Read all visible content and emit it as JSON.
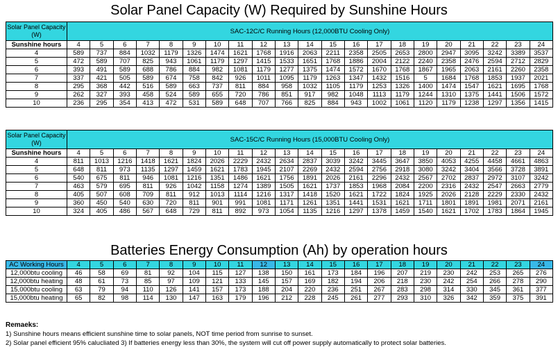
{
  "titles": {
    "solar": "Solar Panel Capacity (W) Required by Sunshine Hours",
    "batteries": "Batteries Energy Consumption (Ah) by operation hours"
  },
  "table1": {
    "corner": "Solar Panel Capacity (W)",
    "caption": "SAC-12C/C Running Hours (12,000BTU Cooling Only)",
    "row_label": "Sunshine hours",
    "hours": [
      "4",
      "5",
      "6",
      "7",
      "8",
      "9",
      "10",
      "11",
      "12",
      "13",
      "14",
      "15",
      "16",
      "17",
      "18",
      "19",
      "20",
      "21",
      "22",
      "23",
      "24"
    ],
    "rows": [
      {
        "label": "4",
        "values": [
          "589",
          "737",
          "884",
          "1032",
          "1179",
          "1326",
          "1474",
          "1621",
          "1768",
          "1916",
          "2063",
          "2211",
          "2358",
          "2505",
          "2653",
          "2800",
          "2947",
          "3095",
          "3242",
          "3389",
          "3537"
        ]
      },
      {
        "label": "5",
        "values": [
          "472",
          "589",
          "707",
          "825",
          "943",
          "1061",
          "1179",
          "1297",
          "1415",
          "1533",
          "1651",
          "1768",
          "1886",
          "2004",
          "2122",
          "2240",
          "2358",
          "2476",
          "2594",
          "2712",
          "2829"
        ]
      },
      {
        "label": "6",
        "values": [
          "393",
          "491",
          "589",
          "688",
          "786",
          "884",
          "982",
          "1081",
          "1179",
          "1277",
          "1375",
          "1474",
          "1572",
          "1670",
          "1768",
          "1867",
          "1965",
          "2063",
          "2161",
          "2260",
          "2358"
        ]
      },
      {
        "label": "7",
        "values": [
          "337",
          "421",
          "505",
          "589",
          "674",
          "758",
          "842",
          "926",
          "1011",
          "1095",
          "1179",
          "1263",
          "1347",
          "1432",
          "1516",
          "5",
          "1684",
          "1768",
          "1853",
          "1937",
          "2021"
        ]
      },
      {
        "label": "8",
        "values": [
          "295",
          "368",
          "442",
          "516",
          "589",
          "663",
          "737",
          "811",
          "884",
          "958",
          "1032",
          "1105",
          "1179",
          "1253",
          "1326",
          "1400",
          "1474",
          "1547",
          "1621",
          "1695",
          "1768"
        ]
      },
      {
        "label": "9",
        "values": [
          "262",
          "327",
          "393",
          "458",
          "524",
          "589",
          "655",
          "720",
          "786",
          "851",
          "917",
          "982",
          "1048",
          "1113",
          "1179",
          "1244",
          "1310",
          "1375",
          "1441",
          "1506",
          "1572"
        ]
      },
      {
        "label": "10",
        "values": [
          "236",
          "295",
          "354",
          "413",
          "472",
          "531",
          "589",
          "648",
          "707",
          "766",
          "825",
          "884",
          "943",
          "1002",
          "1061",
          "1120",
          "1179",
          "1238",
          "1297",
          "1356",
          "1415"
        ]
      }
    ]
  },
  "table2": {
    "corner": "Solar Panel Capacity (W)",
    "caption": "SAC-15C/C Running Hours (15,000BTU Cooling Only)",
    "row_label": "Sunshine hours",
    "hours": [
      "4",
      "5",
      "6",
      "7",
      "8",
      "9",
      "10",
      "11",
      "12",
      "13",
      "14",
      "15",
      "16",
      "17",
      "18",
      "19",
      "20",
      "21",
      "22",
      "23",
      "24"
    ],
    "rows": [
      {
        "label": "4",
        "values": [
          "811",
          "1013",
          "1216",
          "1418",
          "1621",
          "1824",
          "2026",
          "2229",
          "2432",
          "2634",
          "2837",
          "3039",
          "3242",
          "3445",
          "3647",
          "3850",
          "4053",
          "4255",
          "4458",
          "4661",
          "4863"
        ]
      },
      {
        "label": "5",
        "values": [
          "648",
          "811",
          "973",
          "1135",
          "1297",
          "1459",
          "1621",
          "1783",
          "1945",
          "2107",
          "2269",
          "2432",
          "2594",
          "2756",
          "2918",
          "3080",
          "3242",
          "3404",
          "3566",
          "3728",
          "3891"
        ]
      },
      {
        "label": "6",
        "values": [
          "540",
          "675",
          "811",
          "946",
          "1081",
          "1216",
          "1351",
          "1486",
          "1621",
          "1756",
          "1891",
          "2026",
          "2161",
          "2296",
          "2432",
          "2567",
          "2702",
          "2837",
          "2972",
          "3107",
          "3242"
        ]
      },
      {
        "label": "7",
        "values": [
          "463",
          "579",
          "695",
          "811",
          "926",
          "1042",
          "1158",
          "1274",
          "1389",
          "1505",
          "1621",
          "1737",
          "1853",
          "1968",
          "2084",
          "2200",
          "2316",
          "2432",
          "2547",
          "2663",
          "2779"
        ]
      },
      {
        "label": "8",
        "values": [
          "405",
          "507",
          "608",
          "709",
          "811",
          "912",
          "1013",
          "1114",
          "1216",
          "1317",
          "1418",
          "1520",
          "1621",
          "1722",
          "1824",
          "1925",
          "2026",
          "2128",
          "2229",
          "2330",
          "2432"
        ]
      },
      {
        "label": "9",
        "values": [
          "360",
          "450",
          "540",
          "630",
          "720",
          "811",
          "901",
          "991",
          "1081",
          "1171",
          "1261",
          "1351",
          "1441",
          "1531",
          "1621",
          "1711",
          "1801",
          "1891",
          "1981",
          "2071",
          "2161"
        ]
      },
      {
        "label": "10",
        "values": [
          "324",
          "405",
          "486",
          "567",
          "648",
          "729",
          "811",
          "892",
          "973",
          "1054",
          "1135",
          "1216",
          "1297",
          "1378",
          "1459",
          "1540",
          "1621",
          "1702",
          "1783",
          "1864",
          "1945"
        ]
      }
    ]
  },
  "table3": {
    "corner": "AC Working Hours",
    "hours": [
      "4",
      "5",
      "6",
      "7",
      "8",
      "9",
      "10",
      "11",
      "12",
      "13",
      "14",
      "15",
      "16",
      "17",
      "18",
      "19",
      "20",
      "21",
      "22",
      "23",
      "24"
    ],
    "highlight_hours": [
      "12",
      "24"
    ],
    "rows": [
      {
        "label": "12,000btu cooling",
        "values": [
          "46",
          "58",
          "69",
          "81",
          "92",
          "104",
          "115",
          "127",
          "138",
          "150",
          "161",
          "173",
          "184",
          "196",
          "207",
          "219",
          "230",
          "242",
          "253",
          "265",
          "276"
        ]
      },
      {
        "label": "12,000btu heating",
        "values": [
          "48",
          "61",
          "73",
          "85",
          "97",
          "109",
          "121",
          "133",
          "145",
          "157",
          "169",
          "182",
          "194",
          "206",
          "218",
          "230",
          "242",
          "254",
          "266",
          "278",
          "290"
        ]
      },
      {
        "label": "15,000btu cooling",
        "values": [
          "63",
          "79",
          "94",
          "110",
          "126",
          "141",
          "157",
          "173",
          "188",
          "204",
          "220",
          "236",
          "251",
          "267",
          "283",
          "298",
          "314",
          "330",
          "345",
          "361",
          "377"
        ]
      },
      {
        "label": "15,000btu heating",
        "values": [
          "65",
          "82",
          "98",
          "114",
          "130",
          "147",
          "163",
          "179",
          "196",
          "212",
          "228",
          "245",
          "261",
          "277",
          "293",
          "310",
          "326",
          "342",
          "359",
          "375",
          "391"
        ]
      }
    ]
  },
  "remarks": {
    "title": "Remaeks:",
    "line1": "1) Sunshine hours means efficient sunshine time to solar panels, NOT time period from sunrise to sunset.",
    "line2": "2) Solar panel efficient 95% calucliated     3) If batteries energy less than 30%, the system will cut off power supply automatically to protect solar batteries."
  },
  "colors": {
    "cyan_header": "#33d6e0",
    "blue_highlight": "#38b8e8"
  }
}
